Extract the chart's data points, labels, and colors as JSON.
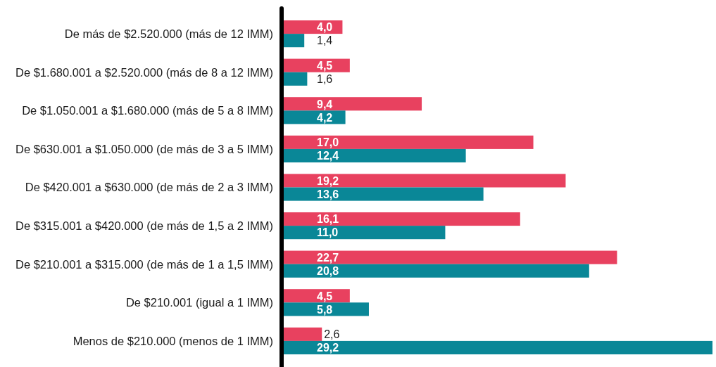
{
  "chart_data": {
    "type": "bar",
    "orientation": "horizontal",
    "categories": [
      "De más de $2.520.000 (más de 12 IMM)",
      "De $1.680.001 a $2.520.000 (más de 8 a 12 IMM)",
      "De $1.050.001 a $1.680.000 (más de 5 a 8 IMM)",
      "De $630.001 a $1.050.000 (de más de 3 a 5 IMM)",
      "De $420.001 a $630.000 (de más de 2 a 3 IMM)",
      "De $315.001 a $420.000 (de más de 1,5 a 2 IMM)",
      "De $210.001 a $315.000 (de más de 1 a 1,5 IMM)",
      "De $210.001 (igual a 1 IMM)",
      "Menos de $210.000 (menos de 1 IMM)"
    ],
    "series": [
      {
        "color": "#e8415f",
        "values": [
          4.0,
          4.5,
          9.4,
          17.0,
          19.2,
          16.1,
          22.7,
          4.5,
          2.6
        ],
        "value_labels": [
          "4,0",
          "4,5",
          "9,4",
          "17,0",
          "19,2",
          "16,1",
          "22,7",
          "4,5",
          "2,6"
        ]
      },
      {
        "color": "#0a8797",
        "values": [
          1.4,
          1.6,
          4.2,
          12.4,
          13.6,
          11.0,
          20.8,
          5.8,
          29.2
        ],
        "value_labels": [
          "1,4",
          "1,6",
          "4,2",
          "12,4",
          "13,6",
          "11,0",
          "20,8",
          "5,8",
          "29,2"
        ]
      }
    ]
  }
}
